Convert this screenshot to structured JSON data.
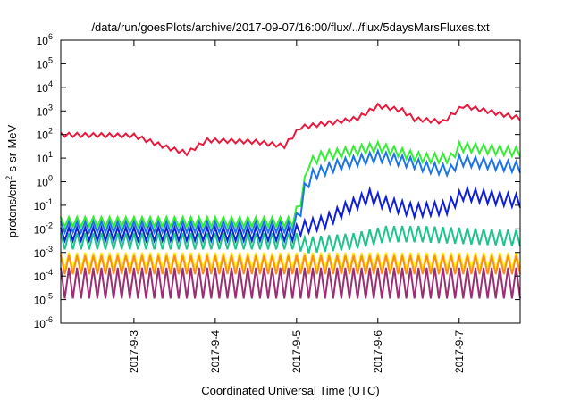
{
  "chart_data": {
    "type": "line",
    "title": "/data/run/goesPlots/archive/2017-09-07/16:00/flux/../flux/5daysMarsFluxes.txt",
    "xlabel": "Coordinated Universal Time (UTC)",
    "ylabel_base": "protons/cm",
    "ylabel_sup": "2",
    "ylabel_tail": "-s-sr-MeV",
    "yscale": "log",
    "ylim": [
      1e-06,
      1000000.0
    ],
    "xlim": [
      2.1,
      7.75
    ],
    "grid": false,
    "legend": "none",
    "x_ticks": [
      {
        "x": 3,
        "label": "2017-9-3"
      },
      {
        "x": 4,
        "label": "2017-9-4"
      },
      {
        "x": 5,
        "label": "2017-9-5"
      },
      {
        "x": 6,
        "label": "2017-9-6"
      },
      {
        "x": 7,
        "label": "2017-9-7"
      }
    ],
    "y_ticks": [
      {
        "exp": -6,
        "base": "10",
        "sup": "-6"
      },
      {
        "exp": -5,
        "base": "10",
        "sup": "-5"
      },
      {
        "exp": -4,
        "base": "10",
        "sup": "-4"
      },
      {
        "exp": -3,
        "base": "10",
        "sup": "-3"
      },
      {
        "exp": -2,
        "base": "10",
        "sup": "-2"
      },
      {
        "exp": -1,
        "base": "10",
        "sup": "-1"
      },
      {
        "exp": 0,
        "base": "10",
        "sup": "0"
      },
      {
        "exp": 1,
        "base": "10",
        "sup": "1"
      },
      {
        "exp": 2,
        "base": "10",
        "sup": "2"
      },
      {
        "exp": 3,
        "base": "10",
        "sup": "3"
      },
      {
        "exp": 4,
        "base": "10",
        "sup": "4"
      },
      {
        "exp": 5,
        "base": "10",
        "sup": "5"
      },
      {
        "exp": 6,
        "base": "10",
        "sup": "6"
      }
    ],
    "series": [
      {
        "color": "#e8193c",
        "base": [
          [
            2.1,
            120
          ],
          [
            3.0,
            110
          ],
          [
            3.4,
            35
          ],
          [
            3.65,
            20
          ],
          [
            3.9,
            70
          ],
          [
            4.5,
            60
          ],
          [
            4.85,
            40
          ],
          [
            5.05,
            250
          ],
          [
            5.5,
            420
          ],
          [
            5.75,
            600
          ],
          [
            6.0,
            2000
          ],
          [
            6.3,
            1300
          ],
          [
            6.45,
            550
          ],
          [
            6.6,
            500
          ],
          [
            6.8,
            420
          ],
          [
            7.05,
            2000
          ],
          [
            7.75,
            600
          ]
        ],
        "amp": 1.5,
        "period": 0.1,
        "lower_only": true
      },
      {
        "color": "#33ee33",
        "base": [
          [
            2.1,
            0.02
          ],
          [
            4.95,
            0.02
          ],
          [
            5.05,
            0.15
          ],
          [
            5.1,
            1
          ],
          [
            5.15,
            6
          ],
          [
            5.3,
            12
          ],
          [
            5.6,
            18
          ],
          [
            6.0,
            30
          ],
          [
            6.45,
            12
          ],
          [
            6.6,
            10
          ],
          [
            6.9,
            10
          ],
          [
            7.0,
            30
          ],
          [
            7.75,
            18
          ]
        ],
        "amp": 1.6,
        "period": 0.1
      },
      {
        "color": "#1a75e8",
        "base": [
          [
            2.1,
            0.012
          ],
          [
            4.95,
            0.012
          ],
          [
            5.05,
            0.06
          ],
          [
            5.1,
            0.5
          ],
          [
            5.2,
            2
          ],
          [
            5.5,
            5
          ],
          [
            6.0,
            12
          ],
          [
            6.45,
            6
          ],
          [
            6.6,
            4
          ],
          [
            6.9,
            3
          ],
          [
            7.0,
            8
          ],
          [
            7.75,
            4
          ]
        ],
        "amp": 1.7,
        "period": 0.1
      },
      {
        "color": "#0f1fd8",
        "base": [
          [
            2.1,
            0.006
          ],
          [
            4.95,
            0.006
          ],
          [
            5.05,
            0.01
          ],
          [
            5.1,
            0.012
          ],
          [
            5.35,
            0.02
          ],
          [
            5.6,
            0.07
          ],
          [
            5.9,
            0.25
          ],
          [
            6.1,
            0.12
          ],
          [
            6.45,
            0.06
          ],
          [
            6.85,
            0.08
          ],
          [
            7.05,
            0.3
          ],
          [
            7.75,
            0.15
          ]
        ],
        "amp": 1.9,
        "period": 0.1
      },
      {
        "color": "#1fc48c",
        "base": [
          [
            2.1,
            0.003
          ],
          [
            5.0,
            0.003
          ],
          [
            5.1,
            0.002
          ],
          [
            5.7,
            0.003
          ],
          [
            6.1,
            0.006
          ],
          [
            6.55,
            0.006
          ],
          [
            7.05,
            0.005
          ],
          [
            7.75,
            0.004
          ]
        ],
        "amp": 2.2,
        "period": 0.1
      },
      {
        "color": "#ffef10",
        "base": [
          [
            2.1,
            0.00045
          ],
          [
            7.75,
            0.00045
          ]
        ],
        "amp": 2.2,
        "period": 0.1
      },
      {
        "color": "#ff8c1a",
        "base": [
          [
            2.1,
            0.0003
          ],
          [
            7.75,
            0.0003
          ]
        ],
        "amp": 2.5,
        "period": 0.1
      },
      {
        "color": "#9c2e74",
        "base": [
          [
            2.1,
            5e-05
          ],
          [
            7.75,
            5e-05
          ]
        ],
        "amp": 4.5,
        "period": 0.1
      }
    ]
  }
}
